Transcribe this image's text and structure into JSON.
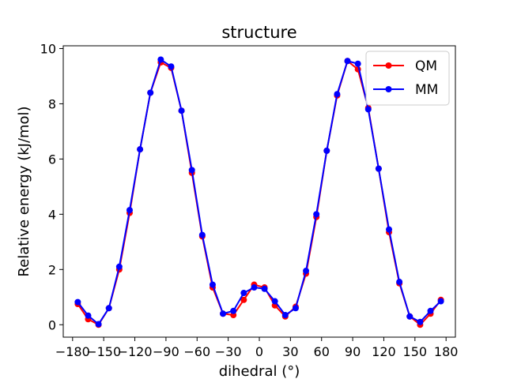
{
  "chart_data": {
    "type": "line",
    "title": "structure",
    "xlabel": "dihedral (°)",
    "ylabel": "Relative energy (kJ/mol)",
    "xlim": [
      -189,
      189
    ],
    "ylim": [
      -0.45,
      10.1
    ],
    "xticks": [
      -180,
      -150,
      -120,
      -90,
      -60,
      -30,
      0,
      30,
      60,
      90,
      120,
      150,
      180
    ],
    "xtick_labels": [
      "−180",
      "−150",
      "−120",
      "−90",
      "−60",
      "−30",
      "0",
      "30",
      "60",
      "90",
      "120",
      "150",
      "180"
    ],
    "yticks": [
      0,
      2,
      4,
      6,
      8,
      10
    ],
    "ytick_labels": [
      "0",
      "2",
      "4",
      "6",
      "8",
      "10"
    ],
    "grid": false,
    "legend_position": "top-right",
    "series": [
      {
        "name": "QM",
        "color": "#ff0000",
        "x": [
          -175,
          -165,
          -155,
          -145,
          -135,
          -125,
          -115,
          -105,
          -95,
          -85,
          -75,
          -65,
          -55,
          -45,
          -35,
          -25,
          -15,
          -5,
          5,
          15,
          25,
          35,
          45,
          55,
          65,
          75,
          85,
          95,
          105,
          115,
          125,
          135,
          145,
          155,
          165,
          175
        ],
        "y": [
          0.75,
          0.2,
          0.0,
          0.6,
          2.0,
          4.05,
          6.35,
          8.4,
          9.5,
          9.3,
          7.75,
          5.5,
          3.2,
          1.35,
          0.4,
          0.35,
          0.9,
          1.45,
          1.35,
          0.7,
          0.3,
          0.65,
          1.85,
          3.9,
          6.3,
          8.3,
          9.55,
          9.25,
          7.85,
          5.65,
          3.35,
          1.5,
          0.3,
          0.0,
          0.4,
          0.9
        ]
      },
      {
        "name": "MM",
        "color": "#0000ff",
        "x": [
          -175,
          -165,
          -155,
          -145,
          -135,
          -125,
          -115,
          -105,
          -95,
          -85,
          -75,
          -65,
          -55,
          -45,
          -35,
          -25,
          -15,
          -5,
          5,
          15,
          25,
          35,
          45,
          55,
          65,
          75,
          85,
          95,
          105,
          115,
          125,
          135,
          145,
          155,
          165,
          175
        ],
        "y": [
          0.82,
          0.33,
          0.02,
          0.6,
          2.1,
          4.15,
          6.35,
          8.4,
          9.6,
          9.35,
          7.75,
          5.6,
          3.25,
          1.45,
          0.4,
          0.5,
          1.15,
          1.35,
          1.3,
          0.85,
          0.35,
          0.6,
          1.95,
          4.0,
          6.3,
          8.35,
          9.55,
          9.45,
          7.8,
          5.65,
          3.45,
          1.55,
          0.3,
          0.1,
          0.5,
          0.85
        ]
      }
    ]
  }
}
